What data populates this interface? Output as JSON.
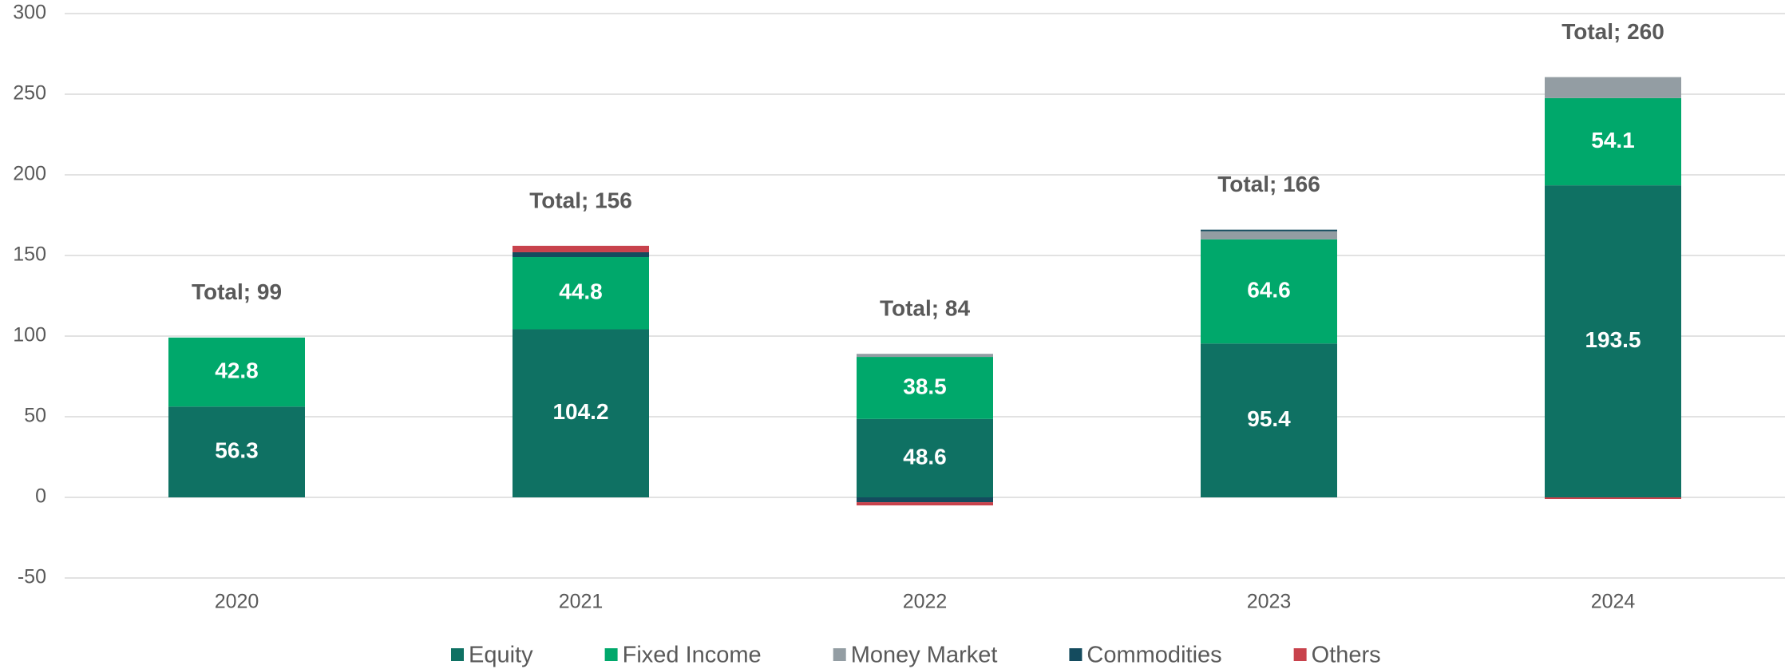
{
  "chart_data": {
    "type": "stacked_bar",
    "categories": [
      "2020",
      "2021",
      "2022",
      "2023",
      "2024"
    ],
    "series": [
      {
        "name": "Equity",
        "color": "#0f7163",
        "values": [
          56.3,
          104.2,
          48.6,
          95.4,
          193.5
        ],
        "data_labels": true
      },
      {
        "name": "Fixed Income",
        "color": "#00a86b",
        "values": [
          42.8,
          44.8,
          38.5,
          64.6,
          54.1
        ],
        "data_labels": true
      },
      {
        "name": "Money Market",
        "color": "#939da3",
        "values": [
          0,
          0,
          1.9,
          5,
          13
        ],
        "data_labels": false
      },
      {
        "name": "Commodities",
        "color": "#144b5e",
        "values": [
          0,
          3,
          -3,
          1,
          0
        ],
        "data_labels": false
      },
      {
        "name": "Others",
        "color": "#c8424c",
        "values": [
          0,
          4,
          -2,
          0,
          -1
        ],
        "data_labels": false
      }
    ],
    "total_labels": [
      "Total; 99",
      "Total; 156",
      "Total; 84",
      "Total; 166",
      "Total; 260"
    ],
    "ylim": [
      -50,
      300
    ],
    "yticks": [
      -50,
      0,
      50,
      100,
      150,
      200,
      250,
      300
    ],
    "grid": true,
    "legend": "bottom"
  }
}
